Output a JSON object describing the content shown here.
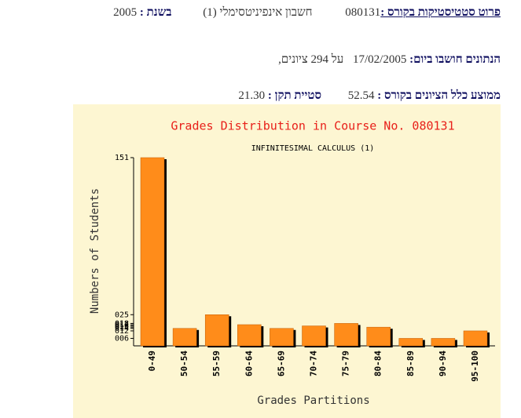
{
  "header": {
    "course_label": "פרוט סטטיסטיקות בקורס :",
    "course_number": "080131",
    "course_name": "חשבון אינפיניטסימלי (1)",
    "year_label": "בשנת :",
    "year": "2005"
  },
  "info": {
    "computed_label": "הנתונים חושבו ביום:",
    "date": "17/02/2005",
    "count_text": "על 294 ציונים,"
  },
  "stats": {
    "average_label": "ממוצע כלל הציונים בקורס :",
    "average": "52.54",
    "std_label": "סטיית תקן :",
    "std": "21.30"
  },
  "chart_data": {
    "type": "bar",
    "title": "Grades Distribution in Course No. 080131",
    "subtitle": "INFINITESIMAL CALCULUS (1)",
    "y_label": "Numbers of Students",
    "x_label": "Grades Partitions",
    "categories": [
      "0-49",
      "50-54",
      "55-59",
      "60-64",
      "65-69",
      "70-74",
      "75-79",
      "80-84",
      "85-89",
      "90-94",
      "95-100"
    ],
    "values": [
      151,
      14,
      25,
      17,
      14,
      16,
      18,
      15,
      6,
      6,
      12
    ],
    "color": "#ff8c1a",
    "ylim": [
      0,
      151
    ],
    "yticks": [
      151,
      {
        "value": 25,
        "label": "025"
      },
      {
        "value": 18,
        "label": "018"
      },
      {
        "value": 17,
        "label": "017"
      },
      {
        "value": 16,
        "label": "016"
      },
      {
        "value": 15,
        "label": "015"
      },
      {
        "value": 14,
        "label": "014"
      },
      {
        "value": 12,
        "label": "012"
      },
      {
        "value": 6,
        "label": "006"
      }
    ],
    "grid": false
  }
}
